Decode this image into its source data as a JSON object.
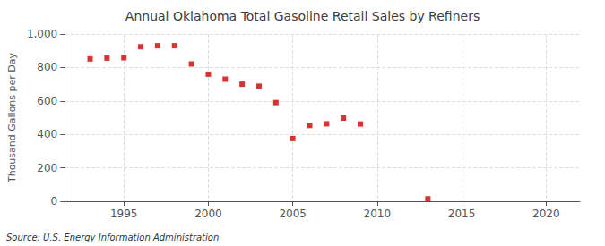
{
  "chart_data": {
    "type": "scatter",
    "title": "Annual Oklahoma Total Gasoline Retail Sales by Refiners",
    "ylabel": "Thousand Gallons per Day",
    "source": "Source: U.S. Energy Information Administration",
    "x": [
      1993,
      1994,
      1995,
      1996,
      1997,
      1998,
      1999,
      2000,
      2001,
      2002,
      2003,
      2004,
      2005,
      2006,
      2007,
      2008,
      2009,
      2013
    ],
    "values": [
      851,
      856,
      858,
      924,
      930,
      930,
      821,
      760,
      730,
      700,
      688,
      590,
      375,
      453,
      463,
      497,
      462,
      15
    ],
    "color": "#cc0000",
    "marker": "square",
    "xlim": [
      1991.5,
      2022
    ],
    "xticks": [
      1995,
      2000,
      2005,
      2010,
      2015,
      2020
    ],
    "ylim": [
      0,
      1000
    ],
    "yticks": [
      0,
      200,
      400,
      600,
      800,
      {
        "value": 1000,
        "label": "1,000"
      }
    ],
    "grid": true
  }
}
